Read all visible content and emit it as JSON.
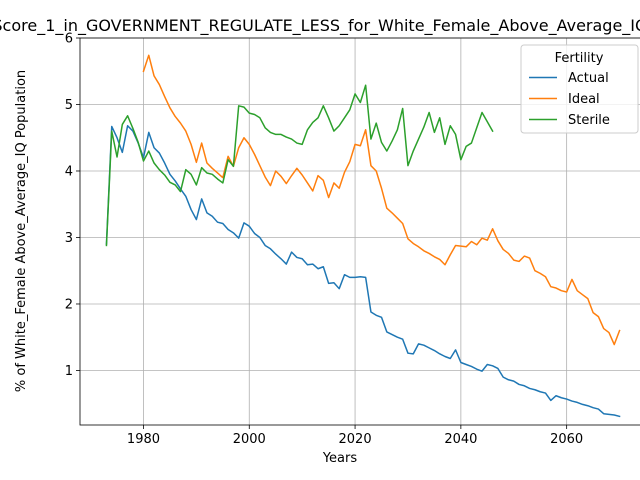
{
  "chart_data": {
    "type": "line",
    "title": "Score_1_in_GOVERNMENT_REGULATE_LESS_for_White_Female_Above_Average_IQ",
    "xlabel": "Years",
    "ylabel": "% of White_Female Above_Average_IQ Population",
    "xlim": [
      1968,
      2075
    ],
    "ylim": [
      0.18,
      6.0
    ],
    "xticks": [
      1980,
      2000,
      2020,
      2040,
      2060
    ],
    "yticks": [
      1,
      2,
      3,
      4,
      5,
      6
    ],
    "grid": true,
    "legend": {
      "title": "Fertility",
      "placement": "top-right"
    },
    "series": [
      {
        "name": "Actual",
        "color": "#1f77b4",
        "points": [
          [
            1973,
            2.9
          ],
          [
            1974,
            4.67
          ],
          [
            1975,
            4.5
          ],
          [
            1976,
            4.28
          ],
          [
            1977,
            4.68
          ],
          [
            1978,
            4.6
          ],
          [
            1979,
            4.42
          ],
          [
            1980,
            4.2
          ],
          [
            1981,
            4.58
          ],
          [
            1982,
            4.35
          ],
          [
            1983,
            4.27
          ],
          [
            1984,
            4.12
          ],
          [
            1985,
            3.95
          ],
          [
            1986,
            3.85
          ],
          [
            1987,
            3.73
          ],
          [
            1988,
            3.62
          ],
          [
            1989,
            3.42
          ],
          [
            1990,
            3.27
          ],
          [
            1991,
            3.58
          ],
          [
            1992,
            3.37
          ],
          [
            1993,
            3.32
          ],
          [
            1994,
            3.23
          ],
          [
            1995,
            3.21
          ],
          [
            1996,
            3.12
          ],
          [
            1997,
            3.07
          ],
          [
            1998,
            2.99
          ],
          [
            1999,
            3.22
          ],
          [
            2000,
            3.17
          ],
          [
            2001,
            3.06
          ],
          [
            2002,
            3.0
          ],
          [
            2003,
            2.88
          ],
          [
            2004,
            2.83
          ],
          [
            2005,
            2.75
          ],
          [
            2006,
            2.68
          ],
          [
            2007,
            2.6
          ],
          [
            2008,
            2.78
          ],
          [
            2009,
            2.7
          ],
          [
            2010,
            2.68
          ],
          [
            2011,
            2.59
          ],
          [
            2012,
            2.6
          ],
          [
            2013,
            2.53
          ],
          [
            2014,
            2.56
          ],
          [
            2015,
            2.31
          ],
          [
            2016,
            2.32
          ],
          [
            2017,
            2.23
          ],
          [
            2018,
            2.44
          ],
          [
            2019,
            2.4
          ],
          [
            2020,
            2.4
          ],
          [
            2021,
            2.41
          ],
          [
            2022,
            2.4
          ],
          [
            2023,
            1.88
          ],
          [
            2024,
            1.83
          ],
          [
            2025,
            1.8
          ],
          [
            2026,
            1.58
          ],
          [
            2027,
            1.54
          ],
          [
            2028,
            1.5
          ],
          [
            2029,
            1.47
          ],
          [
            2030,
            1.26
          ],
          [
            2031,
            1.25
          ],
          [
            2032,
            1.4
          ],
          [
            2033,
            1.38
          ],
          [
            2034,
            1.34
          ],
          [
            2035,
            1.3
          ],
          [
            2036,
            1.25
          ],
          [
            2037,
            1.21
          ],
          [
            2038,
            1.18
          ],
          [
            2039,
            1.31
          ],
          [
            2040,
            1.12
          ],
          [
            2041,
            1.09
          ],
          [
            2042,
            1.06
          ],
          [
            2043,
            1.02
          ],
          [
            2044,
            0.99
          ],
          [
            2045,
            1.09
          ],
          [
            2046,
            1.07
          ],
          [
            2047,
            1.03
          ],
          [
            2048,
            0.9
          ],
          [
            2049,
            0.86
          ],
          [
            2050,
            0.84
          ],
          [
            2051,
            0.79
          ],
          [
            2052,
            0.77
          ],
          [
            2053,
            0.73
          ],
          [
            2054,
            0.71
          ],
          [
            2055,
            0.68
          ],
          [
            2056,
            0.66
          ],
          [
            2057,
            0.55
          ],
          [
            2058,
            0.62
          ],
          [
            2059,
            0.59
          ],
          [
            2060,
            0.57
          ],
          [
            2061,
            0.54
          ],
          [
            2062,
            0.52
          ],
          [
            2063,
            0.49
          ],
          [
            2064,
            0.47
          ],
          [
            2065,
            0.44
          ],
          [
            2066,
            0.42
          ],
          [
            2067,
            0.35
          ],
          [
            2068,
            0.34
          ],
          [
            2069,
            0.33
          ],
          [
            2070,
            0.31
          ]
        ]
      },
      {
        "name": "Ideal",
        "color": "#ff7f0e",
        "points": [
          [
            1980,
            5.5
          ],
          [
            1981,
            5.74
          ],
          [
            1982,
            5.43
          ],
          [
            1983,
            5.3
          ],
          [
            1984,
            5.12
          ],
          [
            1985,
            4.95
          ],
          [
            1986,
            4.82
          ],
          [
            1987,
            4.72
          ],
          [
            1988,
            4.6
          ],
          [
            1989,
            4.4
          ],
          [
            1990,
            4.13
          ],
          [
            1991,
            4.42
          ],
          [
            1992,
            4.12
          ],
          [
            1993,
            4.04
          ],
          [
            1994,
            3.97
          ],
          [
            1995,
            3.9
          ],
          [
            1996,
            4.22
          ],
          [
            1997,
            4.07
          ],
          [
            1998,
            4.35
          ],
          [
            1999,
            4.5
          ],
          [
            2000,
            4.4
          ],
          [
            2001,
            4.25
          ],
          [
            2002,
            4.08
          ],
          [
            2003,
            3.91
          ],
          [
            2004,
            3.78
          ],
          [
            2005,
            4.0
          ],
          [
            2006,
            3.92
          ],
          [
            2007,
            3.81
          ],
          [
            2008,
            3.93
          ],
          [
            2009,
            4.04
          ],
          [
            2010,
            3.94
          ],
          [
            2011,
            3.82
          ],
          [
            2012,
            3.7
          ],
          [
            2013,
            3.93
          ],
          [
            2014,
            3.86
          ],
          [
            2015,
            3.6
          ],
          [
            2016,
            3.82
          ],
          [
            2017,
            3.74
          ],
          [
            2018,
            3.98
          ],
          [
            2019,
            4.14
          ],
          [
            2020,
            4.4
          ],
          [
            2021,
            4.38
          ],
          [
            2022,
            4.62
          ],
          [
            2023,
            4.08
          ],
          [
            2024,
            4.0
          ],
          [
            2025,
            3.74
          ],
          [
            2026,
            3.44
          ],
          [
            2027,
            3.37
          ],
          [
            2028,
            3.29
          ],
          [
            2029,
            3.21
          ],
          [
            2030,
            2.98
          ],
          [
            2031,
            2.91
          ],
          [
            2032,
            2.86
          ],
          [
            2033,
            2.8
          ],
          [
            2034,
            2.76
          ],
          [
            2035,
            2.71
          ],
          [
            2036,
            2.67
          ],
          [
            2037,
            2.59
          ],
          [
            2038,
            2.74
          ],
          [
            2039,
            2.88
          ],
          [
            2040,
            2.87
          ],
          [
            2041,
            2.86
          ],
          [
            2042,
            2.94
          ],
          [
            2043,
            2.89
          ],
          [
            2044,
            2.99
          ],
          [
            2045,
            2.96
          ],
          [
            2046,
            3.13
          ],
          [
            2047,
            2.95
          ],
          [
            2048,
            2.82
          ],
          [
            2049,
            2.76
          ],
          [
            2050,
            2.66
          ],
          [
            2051,
            2.64
          ],
          [
            2052,
            2.72
          ],
          [
            2053,
            2.69
          ],
          [
            2054,
            2.5
          ],
          [
            2055,
            2.46
          ],
          [
            2056,
            2.41
          ],
          [
            2057,
            2.26
          ],
          [
            2058,
            2.24
          ],
          [
            2059,
            2.2
          ],
          [
            2060,
            2.18
          ],
          [
            2061,
            2.37
          ],
          [
            2062,
            2.2
          ],
          [
            2063,
            2.14
          ],
          [
            2064,
            2.08
          ],
          [
            2065,
            1.87
          ],
          [
            2066,
            1.81
          ],
          [
            2067,
            1.63
          ],
          [
            2068,
            1.57
          ],
          [
            2069,
            1.39
          ],
          [
            2070,
            1.6
          ]
        ]
      },
      {
        "name": "Sterile",
        "color": "#2ca02c",
        "points": [
          [
            1973,
            2.88
          ],
          [
            1974,
            4.6
          ],
          [
            1975,
            4.21
          ],
          [
            1976,
            4.7
          ],
          [
            1977,
            4.83
          ],
          [
            1978,
            4.64
          ],
          [
            1979,
            4.43
          ],
          [
            1980,
            4.15
          ],
          [
            1981,
            4.3
          ],
          [
            1982,
            4.12
          ],
          [
            1983,
            4.02
          ],
          [
            1984,
            3.94
          ],
          [
            1985,
            3.83
          ],
          [
            1986,
            3.79
          ],
          [
            1987,
            3.69
          ],
          [
            1988,
            4.02
          ],
          [
            1989,
            3.95
          ],
          [
            1990,
            3.79
          ],
          [
            1991,
            4.05
          ],
          [
            1992,
            3.97
          ],
          [
            1993,
            3.95
          ],
          [
            1994,
            3.88
          ],
          [
            1995,
            3.82
          ],
          [
            1996,
            4.17
          ],
          [
            1997,
            4.07
          ],
          [
            1998,
            4.98
          ],
          [
            1999,
            4.96
          ],
          [
            2000,
            4.87
          ],
          [
            2001,
            4.85
          ],
          [
            2002,
            4.8
          ],
          [
            2003,
            4.65
          ],
          [
            2004,
            4.58
          ],
          [
            2005,
            4.55
          ],
          [
            2006,
            4.55
          ],
          [
            2007,
            4.51
          ],
          [
            2008,
            4.48
          ],
          [
            2009,
            4.42
          ],
          [
            2010,
            4.4
          ],
          [
            2011,
            4.62
          ],
          [
            2012,
            4.73
          ],
          [
            2013,
            4.8
          ],
          [
            2014,
            4.98
          ],
          [
            2015,
            4.8
          ],
          [
            2016,
            4.6
          ],
          [
            2017,
            4.68
          ],
          [
            2018,
            4.8
          ],
          [
            2019,
            4.92
          ],
          [
            2020,
            5.16
          ],
          [
            2021,
            5.03
          ],
          [
            2022,
            5.29
          ],
          [
            2023,
            4.48
          ],
          [
            2024,
            4.72
          ],
          [
            2025,
            4.43
          ],
          [
            2026,
            4.3
          ],
          [
            2027,
            4.45
          ],
          [
            2028,
            4.62
          ],
          [
            2029,
            4.94
          ],
          [
            2030,
            4.08
          ],
          [
            2031,
            4.3
          ],
          [
            2032,
            4.48
          ],
          [
            2033,
            4.66
          ],
          [
            2034,
            4.88
          ],
          [
            2035,
            4.58
          ],
          [
            2036,
            4.8
          ],
          [
            2037,
            4.4
          ],
          [
            2038,
            4.68
          ],
          [
            2039,
            4.55
          ],
          [
            2040,
            4.17
          ],
          [
            2041,
            4.37
          ],
          [
            2042,
            4.42
          ],
          [
            2043,
            4.65
          ],
          [
            2044,
            4.88
          ],
          [
            2045,
            4.74
          ],
          [
            2046,
            4.6
          ]
        ]
      }
    ]
  }
}
